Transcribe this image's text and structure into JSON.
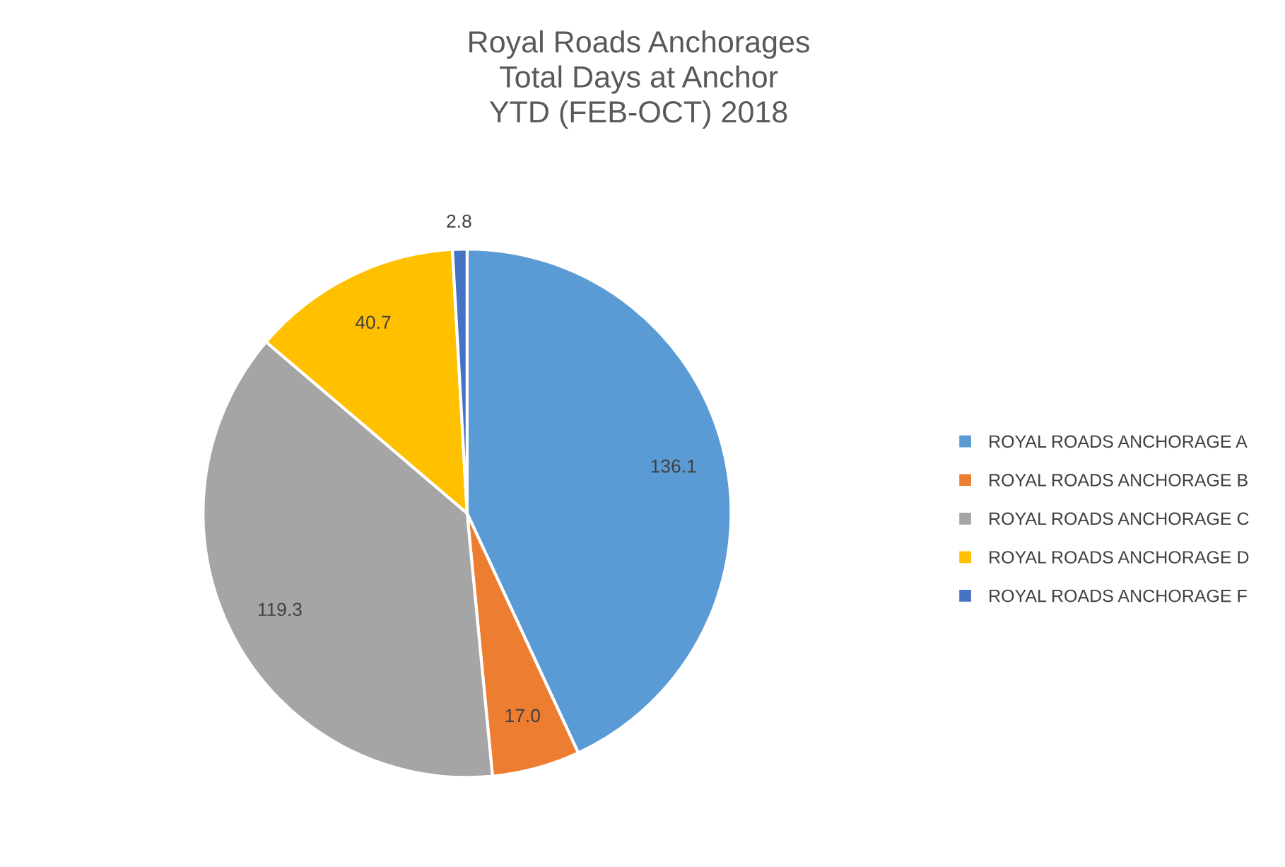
{
  "chart_data": {
    "type": "pie",
    "title": "Royal Roads Anchorages\nTotal Days at Anchor\nYTD (FEB-OCT) 2018",
    "categories": [
      "ROYAL ROADS ANCHORAGE A",
      "ROYAL ROADS ANCHORAGE B",
      "ROYAL ROADS ANCHORAGE C",
      "ROYAL ROADS ANCHORAGE D",
      "ROYAL ROADS ANCHORAGE F"
    ],
    "values": [
      136.1,
      17.0,
      119.3,
      40.7,
      2.8
    ],
    "value_labels": [
      "136.1",
      "17.0",
      "119.3",
      "40.7",
      "2.8"
    ],
    "colors": [
      "#5b9bd5",
      "#ed7d31",
      "#a5a5a5",
      "#ffc000",
      "#4472c4"
    ],
    "legend": "right"
  }
}
